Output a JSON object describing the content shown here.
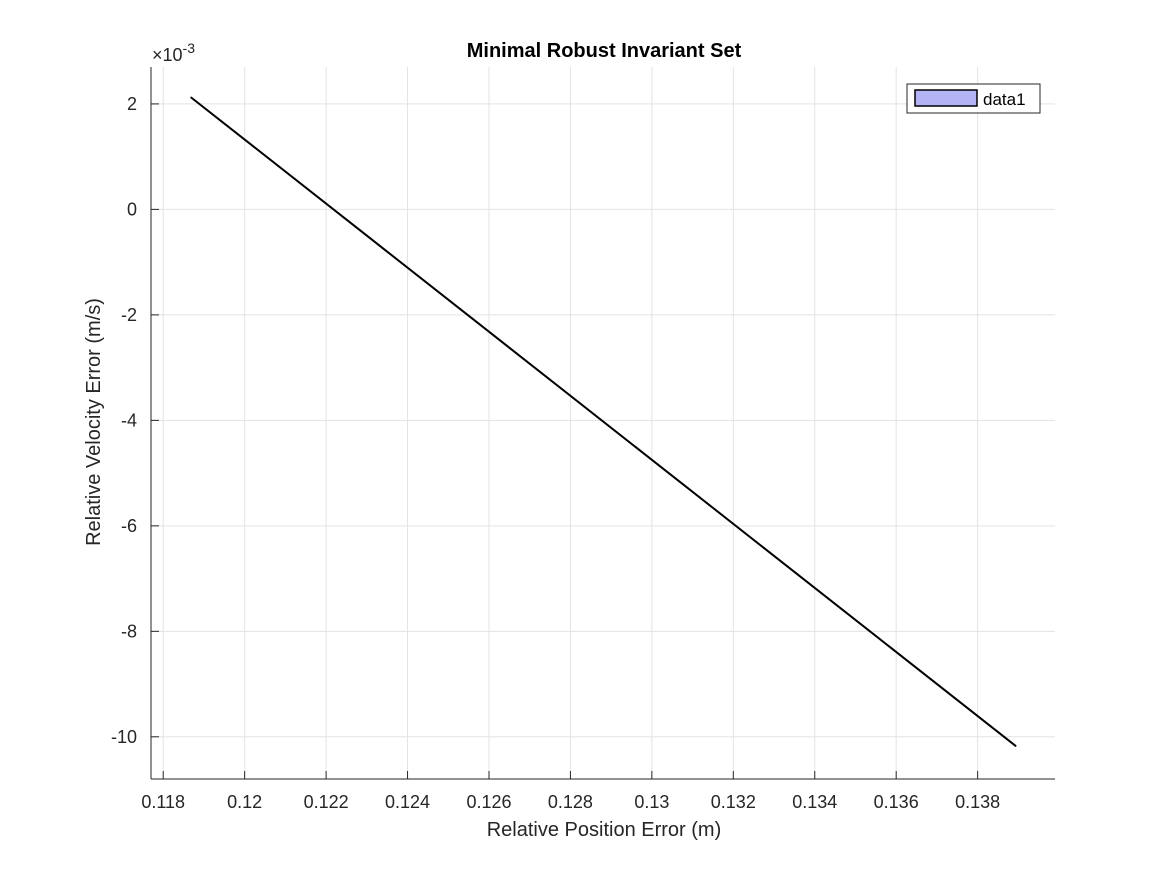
{
  "chart_data": {
    "type": "line",
    "title": "Minimal Robust Invariant Set",
    "xlabel": "Relative Position Error (m)",
    "ylabel": "Relative Velocity Error (m/s)",
    "y_exponent_label": "×10",
    "y_exponent_power": "-3",
    "xlim": [
      0.1177,
      0.1399
    ],
    "ylim": [
      -10.8,
      2.7
    ],
    "x_ticks": [
      0.118,
      0.12,
      0.122,
      0.124,
      0.126,
      0.128,
      0.13,
      0.132,
      0.134,
      0.136,
      0.138
    ],
    "x_tick_labels": [
      "0.118",
      "0.12",
      "0.122",
      "0.124",
      "0.126",
      "0.128",
      "0.13",
      "0.132",
      "0.134",
      "0.136",
      "0.138"
    ],
    "y_ticks": [
      -10,
      -8,
      -6,
      -4,
      -2,
      0,
      2
    ],
    "y_tick_labels": [
      "-10",
      "-8",
      "-6",
      "-4",
      "-2",
      "0",
      "2"
    ],
    "grid": true,
    "legend_position": "top-right",
    "series": [
      {
        "name": "data1",
        "fill_color": "#b3b3f5",
        "edge_color": "#000000",
        "x": [
          0.11869,
          0.13893
        ],
        "y": [
          2.12,
          -10.17
        ]
      }
    ]
  }
}
